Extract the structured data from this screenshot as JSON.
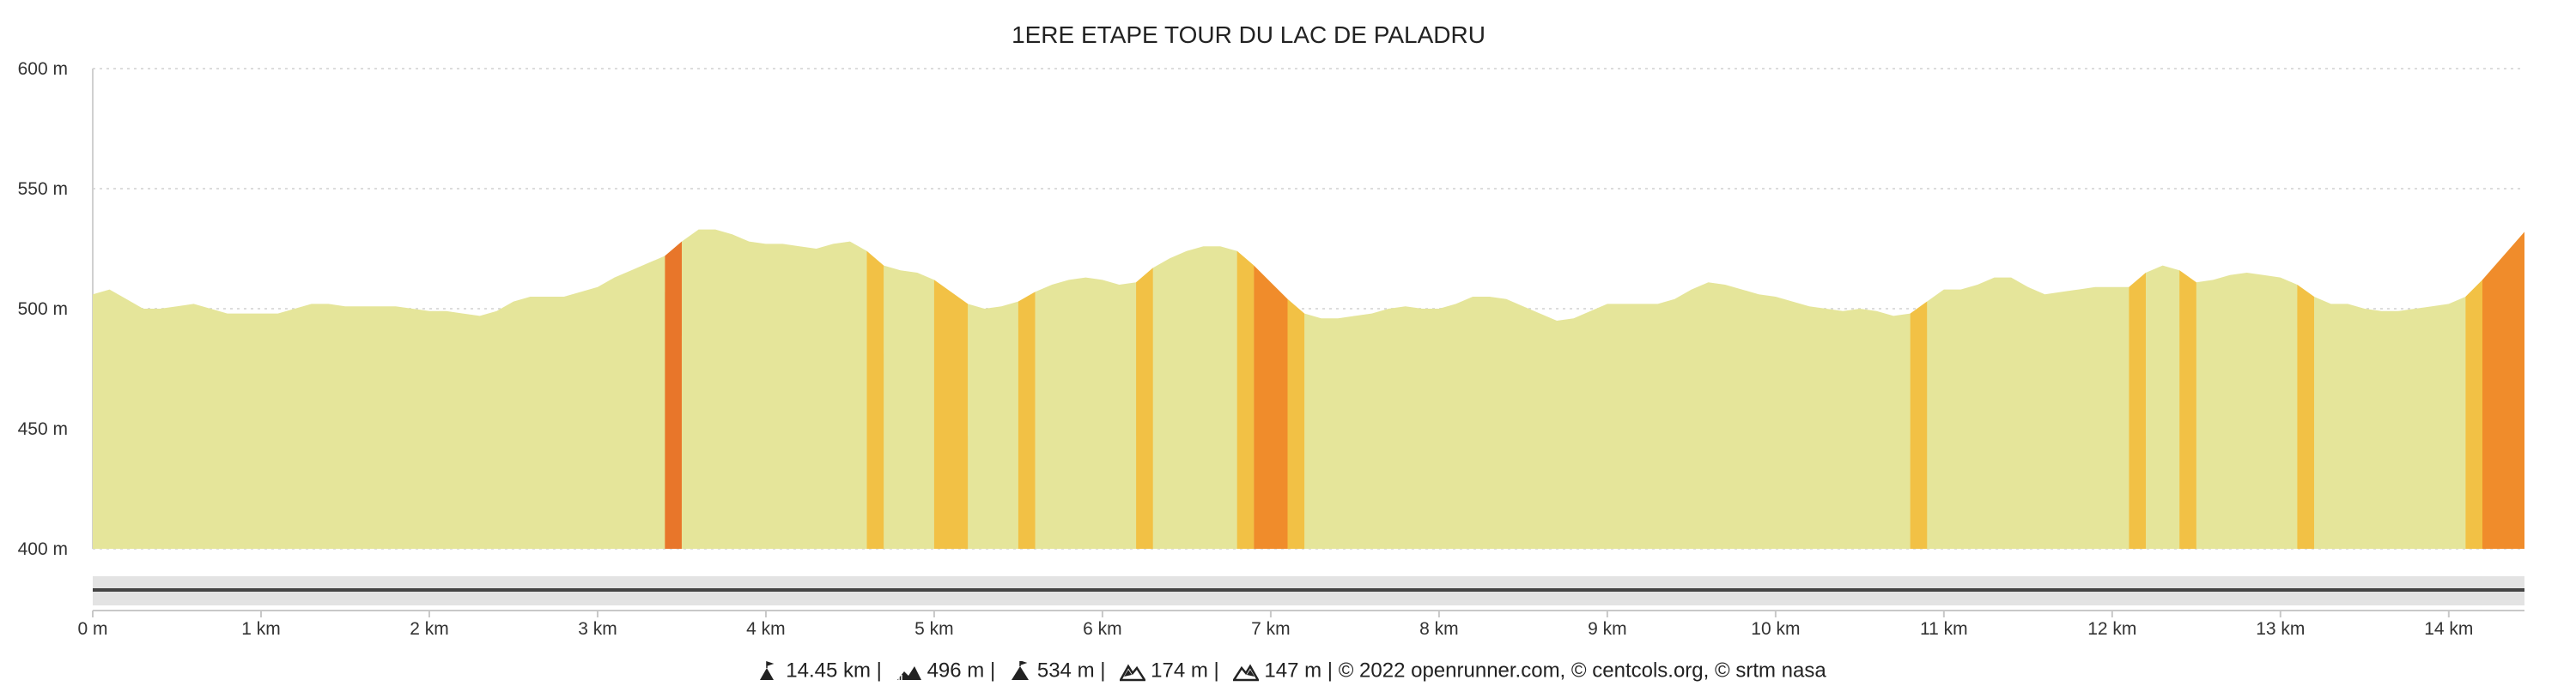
{
  "chart_data": {
    "type": "area",
    "title": "1ERE ETAPE TOUR DU LAC DE PALADRU",
    "xlabel": "",
    "ylabel": "",
    "x_unit": "km",
    "y_unit": "m",
    "xlim": [
      0,
      14.45
    ],
    "ylim": [
      400,
      600
    ],
    "y_ticks": [
      400,
      450,
      500,
      550,
      600
    ],
    "y_tick_labels": [
      "400 m",
      "450 m",
      "500 m",
      "550 m",
      "600 m"
    ],
    "x_ticks": [
      0,
      1,
      2,
      3,
      4,
      5,
      6,
      7,
      8,
      9,
      10,
      11,
      12,
      13,
      14
    ],
    "x_tick_labels": [
      "0 m",
      "1 km",
      "2 km",
      "3 km",
      "4 km",
      "5 km",
      "6 km",
      "7 km",
      "8 km",
      "9 km",
      "10 km",
      "11 km",
      "12 km",
      "13 km",
      "14 km"
    ],
    "grid": "horizontal dotted",
    "colors": {
      "base": "#e5e59a",
      "moderate": "#f2c145",
      "steep": "#f08c2b",
      "very_steep": "#e8762a",
      "scrollbar": "#e3e3e3",
      "scrollbar_line": "#444444"
    },
    "series": [
      {
        "points": [
          [
            0.0,
            506
          ],
          [
            0.1,
            508
          ],
          [
            0.2,
            504
          ],
          [
            0.3,
            500
          ],
          [
            0.4,
            500
          ],
          [
            0.5,
            501
          ],
          [
            0.6,
            502
          ],
          [
            0.7,
            500
          ],
          [
            0.8,
            498
          ],
          [
            0.9,
            498
          ],
          [
            1.0,
            498
          ],
          [
            1.1,
            498
          ],
          [
            1.2,
            500
          ],
          [
            1.3,
            502
          ],
          [
            1.4,
            502
          ],
          [
            1.5,
            501
          ],
          [
            1.6,
            501
          ],
          [
            1.7,
            501
          ],
          [
            1.8,
            501
          ],
          [
            1.9,
            500
          ],
          [
            2.0,
            499
          ],
          [
            2.1,
            499
          ],
          [
            2.2,
            498
          ],
          [
            2.3,
            497
          ],
          [
            2.4,
            499
          ],
          [
            2.5,
            503
          ],
          [
            2.6,
            505
          ],
          [
            2.7,
            505
          ],
          [
            2.8,
            505
          ],
          [
            2.9,
            507
          ],
          [
            3.0,
            509
          ],
          [
            3.1,
            513
          ],
          [
            3.2,
            516
          ],
          [
            3.3,
            519
          ],
          [
            3.4,
            522
          ],
          [
            3.5,
            528
          ],
          [
            3.6,
            533
          ],
          [
            3.7,
            533
          ],
          [
            3.8,
            531
          ],
          [
            3.9,
            528
          ],
          [
            4.0,
            527
          ],
          [
            4.1,
            527
          ],
          [
            4.2,
            526
          ],
          [
            4.3,
            525
          ],
          [
            4.4,
            527
          ],
          [
            4.5,
            528
          ],
          [
            4.6,
            524
          ],
          [
            4.7,
            518
          ],
          [
            4.8,
            516
          ],
          [
            4.9,
            515
          ],
          [
            5.0,
            512
          ],
          [
            5.1,
            507
          ],
          [
            5.2,
            502
          ],
          [
            5.3,
            500
          ],
          [
            5.4,
            501
          ],
          [
            5.5,
            503
          ],
          [
            5.6,
            507
          ],
          [
            5.7,
            510
          ],
          [
            5.8,
            512
          ],
          [
            5.9,
            513
          ],
          [
            6.0,
            512
          ],
          [
            6.1,
            510
          ],
          [
            6.2,
            511
          ],
          [
            6.3,
            517
          ],
          [
            6.4,
            521
          ],
          [
            6.5,
            524
          ],
          [
            6.6,
            526
          ],
          [
            6.7,
            526
          ],
          [
            6.8,
            524
          ],
          [
            6.9,
            518
          ],
          [
            7.0,
            511
          ],
          [
            7.1,
            504
          ],
          [
            7.2,
            498
          ],
          [
            7.3,
            496
          ],
          [
            7.4,
            496
          ],
          [
            7.5,
            497
          ],
          [
            7.6,
            498
          ],
          [
            7.7,
            500
          ],
          [
            7.8,
            501
          ],
          [
            7.9,
            500
          ],
          [
            8.0,
            500
          ],
          [
            8.1,
            502
          ],
          [
            8.2,
            505
          ],
          [
            8.3,
            505
          ],
          [
            8.4,
            504
          ],
          [
            8.5,
            501
          ],
          [
            8.6,
            498
          ],
          [
            8.7,
            495
          ],
          [
            8.8,
            496
          ],
          [
            8.9,
            499
          ],
          [
            9.0,
            502
          ],
          [
            9.1,
            502
          ],
          [
            9.2,
            502
          ],
          [
            9.3,
            502
          ],
          [
            9.4,
            504
          ],
          [
            9.5,
            508
          ],
          [
            9.6,
            511
          ],
          [
            9.7,
            510
          ],
          [
            9.8,
            508
          ],
          [
            9.9,
            506
          ],
          [
            10.0,
            505
          ],
          [
            10.1,
            503
          ],
          [
            10.2,
            501
          ],
          [
            10.3,
            500
          ],
          [
            10.4,
            499
          ],
          [
            10.5,
            500
          ],
          [
            10.6,
            499
          ],
          [
            10.7,
            497
          ],
          [
            10.8,
            498
          ],
          [
            10.9,
            503
          ],
          [
            11.0,
            508
          ],
          [
            11.1,
            508
          ],
          [
            11.2,
            510
          ],
          [
            11.3,
            513
          ],
          [
            11.4,
            513
          ],
          [
            11.5,
            509
          ],
          [
            11.6,
            506
          ],
          [
            11.7,
            507
          ],
          [
            11.8,
            508
          ],
          [
            11.9,
            509
          ],
          [
            12.0,
            509
          ],
          [
            12.1,
            509
          ],
          [
            12.2,
            515
          ],
          [
            12.3,
            518
          ],
          [
            12.4,
            516
          ],
          [
            12.5,
            511
          ],
          [
            12.6,
            512
          ],
          [
            12.7,
            514
          ],
          [
            12.8,
            515
          ],
          [
            12.9,
            514
          ],
          [
            13.0,
            513
          ],
          [
            13.1,
            510
          ],
          [
            13.2,
            505
          ],
          [
            13.3,
            502
          ],
          [
            13.4,
            502
          ],
          [
            13.5,
            500
          ],
          [
            13.6,
            499
          ],
          [
            13.7,
            499
          ],
          [
            13.8,
            500
          ],
          [
            13.9,
            501
          ],
          [
            14.0,
            502
          ],
          [
            14.1,
            505
          ],
          [
            14.2,
            512
          ],
          [
            14.3,
            520
          ],
          [
            14.45,
            532
          ]
        ]
      }
    ],
    "slope_bands": [
      {
        "from": 3.4,
        "to": 3.5,
        "level": "very_steep"
      },
      {
        "from": 4.6,
        "to": 4.7,
        "level": "moderate"
      },
      {
        "from": 5.0,
        "to": 5.2,
        "level": "moderate"
      },
      {
        "from": 5.5,
        "to": 5.6,
        "level": "moderate"
      },
      {
        "from": 6.2,
        "to": 6.3,
        "level": "moderate"
      },
      {
        "from": 6.8,
        "to": 6.9,
        "level": "moderate"
      },
      {
        "from": 6.9,
        "to": 7.1,
        "level": "steep"
      },
      {
        "from": 7.1,
        "to": 7.2,
        "level": "moderate"
      },
      {
        "from": 10.8,
        "to": 10.9,
        "level": "moderate"
      },
      {
        "from": 12.1,
        "to": 12.2,
        "level": "moderate"
      },
      {
        "from": 12.4,
        "to": 12.5,
        "level": "moderate"
      },
      {
        "from": 13.1,
        "to": 13.2,
        "level": "moderate"
      },
      {
        "from": 14.1,
        "to": 14.2,
        "level": "moderate"
      },
      {
        "from": 14.2,
        "to": 14.45,
        "level": "steep"
      }
    ]
  },
  "footer": {
    "icons": [
      "distance-icon",
      "elevation-gain-icon",
      "max-altitude-icon",
      "ascent-icon",
      "descent-icon"
    ],
    "distance": "14.45 km",
    "sep1": "|",
    "elevation_gain": "496 m",
    "sep2": "|",
    "max_altitude": "534 m",
    "sep3": "|",
    "ascent": "174 m",
    "sep4": "|",
    "descent": "147 m",
    "credits": "| © 2022 openrunner.com, © centcols.org, © srtm nasa"
  }
}
